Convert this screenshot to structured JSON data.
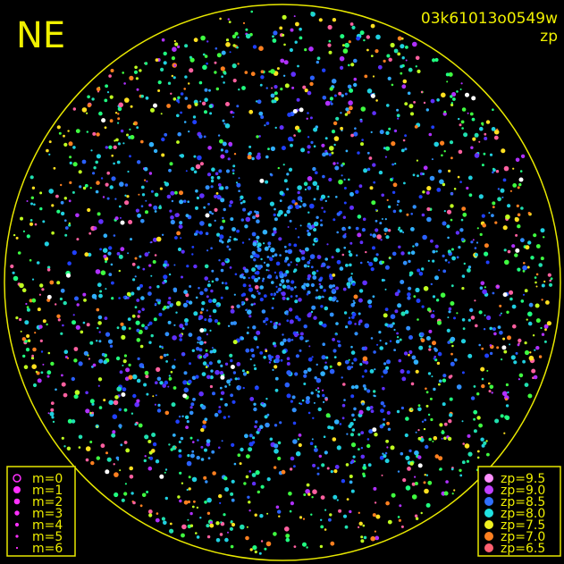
{
  "header": {
    "camera": "NE",
    "frame": "03k61013o0549w",
    "mode": "zp"
  },
  "legend_magnitude": [
    {
      "label": "m=0"
    },
    {
      "label": "m=1"
    },
    {
      "label": "m=2"
    },
    {
      "label": "m=3"
    },
    {
      "label": "m=4"
    },
    {
      "label": "m=5"
    },
    {
      "label": "m=6"
    }
  ],
  "legend_zp": [
    {
      "label": "zp=9.5",
      "color": "#ff90ff"
    },
    {
      "label": "zp=9.0",
      "color": "#c040ff"
    },
    {
      "label": "zp=8.5",
      "color": "#3070ff"
    },
    {
      "label": "zp=8.0",
      "color": "#20e0e0"
    },
    {
      "label": "zp=7.5",
      "color": "#f0f020"
    },
    {
      "label": "zp=7.0",
      "color": "#ff8020"
    },
    {
      "label": "zp=6.5",
      "color": "#ff6070"
    }
  ]
}
